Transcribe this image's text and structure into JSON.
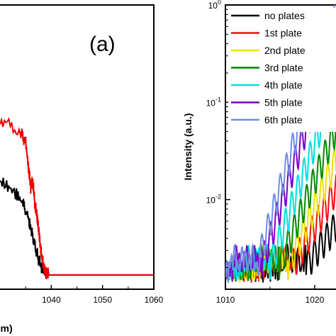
{
  "chart_data": [
    {
      "type": "line",
      "panel_label": "(a)",
      "xlabel": "um)",
      "x_ticks": [
        "1040",
        "1050",
        "1060"
      ],
      "xlim": [
        1030,
        1060
      ],
      "ylim": [
        0,
        1
      ],
      "series": [
        {
          "color": "#000000",
          "x": [
            1030,
            1033,
            1034.5,
            1035.5,
            1036.2,
            1037,
            1037.8,
            1038.5,
            1039.5,
            1041,
            1045,
            1050,
            1055,
            1060
          ],
          "y": [
            0.38,
            0.34,
            0.3,
            0.25,
            0.2,
            0.14,
            0.09,
            0.06,
            0.05,
            0.05,
            0.05,
            0.05,
            0.05,
            0.05
          ]
        },
        {
          "color": "#ee0000",
          "x": [
            1030,
            1034,
            1035,
            1035.6,
            1036,
            1036.4,
            1036.8,
            1037.2,
            1037.6,
            1038,
            1038.5,
            1039,
            1039.5,
            1040.5,
            1045,
            1050,
            1055,
            1060
          ],
          "y": [
            0.6,
            0.55,
            0.52,
            0.42,
            0.36,
            0.38,
            0.3,
            0.26,
            0.2,
            0.13,
            0.08,
            0.06,
            0.05,
            0.05,
            0.05,
            0.05,
            0.05,
            0.05
          ]
        }
      ]
    },
    {
      "type": "line",
      "ylabel": "Intensity (a.u.)",
      "y_scale": "log",
      "ylim": [
        0.0012,
        1
      ],
      "y_ticks": [
        {
          "value": 1,
          "base": "10",
          "exp": "0"
        },
        {
          "value": 0.1,
          "base": "10",
          "exp": "-1"
        },
        {
          "value": 0.01,
          "base": "10",
          "exp": "-2"
        }
      ],
      "x_ticks": [
        "1010",
        "1020"
      ],
      "xlim": [
        1010,
        1023.5
      ],
      "legend_position": "top-right",
      "series": [
        {
          "name": "no plates",
          "color": "#000000",
          "start": 1019.0,
          "growth": 0.12
        },
        {
          "name": "1st plate",
          "color": "#ee1111",
          "start": 1017.5,
          "growth": 0.16
        },
        {
          "name": "2nd plate",
          "color": "#f0e000",
          "start": 1017.0,
          "growth": 0.2
        },
        {
          "name": "3rd plate",
          "color": "#008800",
          "start": 1016.0,
          "growth": 0.22
        },
        {
          "name": "4th plate",
          "color": "#00e0e0",
          "start": 1015.0,
          "growth": 0.25
        },
        {
          "name": "5th plate",
          "color": "#7a00cc",
          "start": 1014.0,
          "growth": 0.28
        },
        {
          "name": "6th plate",
          "color": "#6f8fdf",
          "start": 1013.5,
          "growth": 0.3
        }
      ]
    }
  ]
}
